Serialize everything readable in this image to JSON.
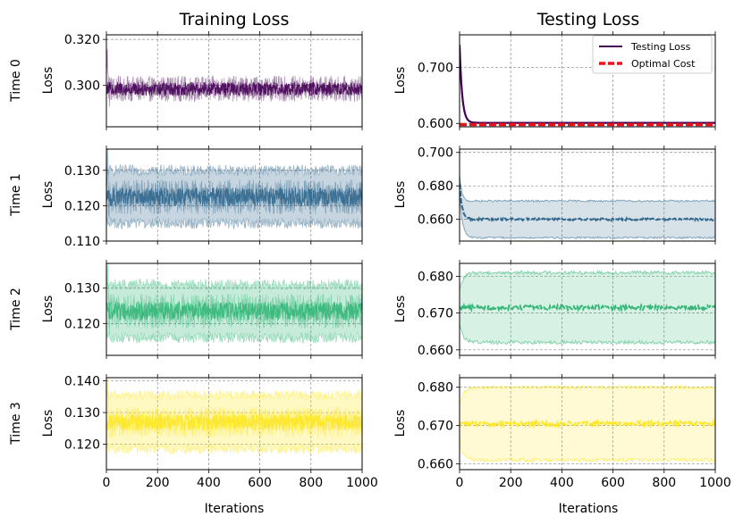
{
  "chart_data": {
    "type": "line",
    "column_titles": [
      "Training Loss",
      "Testing Loss"
    ],
    "row_labels": [
      "Time 0",
      "Time 1",
      "Time 2",
      "Time 3"
    ],
    "ylabel": "Loss",
    "xlabel": "Iterations",
    "xlim": [
      0,
      1000
    ],
    "x_ticks": [
      0,
      200,
      400,
      600,
      800,
      1000
    ],
    "legend": {
      "position": "top-right",
      "entries": [
        "Testing Loss",
        "Optimal Cost"
      ]
    },
    "panels": [
      {
        "row": 0,
        "col": 0,
        "series": "Training Loss",
        "color": "#440154",
        "ylim": [
          0.282,
          0.322
        ],
        "yticks": [
          0.3,
          0.32
        ],
        "mean": 0.2985,
        "noise": 0.004,
        "band": 0.0
      },
      {
        "row": 0,
        "col": 1,
        "series": "Testing Loss",
        "color": "#440154",
        "ylim": [
          0.594,
          0.758
        ],
        "yticks": [
          0.6,
          0.7
        ],
        "start": 0.74,
        "steady": 0.601,
        "optimal_cost": 0.598,
        "optimal_color": "#e8131b"
      },
      {
        "row": 1,
        "col": 0,
        "series": "Training Loss",
        "color": "#31688e",
        "ylim": [
          0.11,
          0.136
        ],
        "yticks": [
          0.11,
          0.12,
          0.13
        ],
        "mean": 0.1225,
        "noise": 0.0035,
        "band": 0.0075
      },
      {
        "row": 1,
        "col": 1,
        "series": "Testing Loss",
        "color": "#31688e",
        "ylim": [
          0.647,
          0.702
        ],
        "yticks": [
          0.66,
          0.68,
          0.7
        ],
        "start": 0.681,
        "steady": 0.66,
        "band": 0.011
      },
      {
        "row": 2,
        "col": 0,
        "series": "Training Loss",
        "color": "#35b779",
        "ylim": [
          0.111,
          0.137
        ],
        "yticks": [
          0.12,
          0.13
        ],
        "mean": 0.1235,
        "noise": 0.0035,
        "band": 0.0075
      },
      {
        "row": 2,
        "col": 1,
        "series": "Testing Loss",
        "color": "#35b779",
        "ylim": [
          0.6585,
          0.6835
        ],
        "yticks": [
          0.66,
          0.67,
          0.68
        ],
        "start": 0.6715,
        "steady": 0.6715,
        "band": 0.0095
      },
      {
        "row": 3,
        "col": 0,
        "series": "Training Loss",
        "color": "#fde725",
        "ylim": [
          0.112,
          0.141
        ],
        "yticks": [
          0.12,
          0.13,
          0.14
        ],
        "mean": 0.127,
        "noise": 0.0035,
        "band": 0.0085
      },
      {
        "row": 3,
        "col": 1,
        "series": "Testing Loss",
        "color": "#fde725",
        "ylim": [
          0.6585,
          0.6825
        ],
        "yticks": [
          0.66,
          0.67,
          0.68
        ],
        "start": 0.6705,
        "steady": 0.6705,
        "band": 0.0095
      }
    ]
  }
}
